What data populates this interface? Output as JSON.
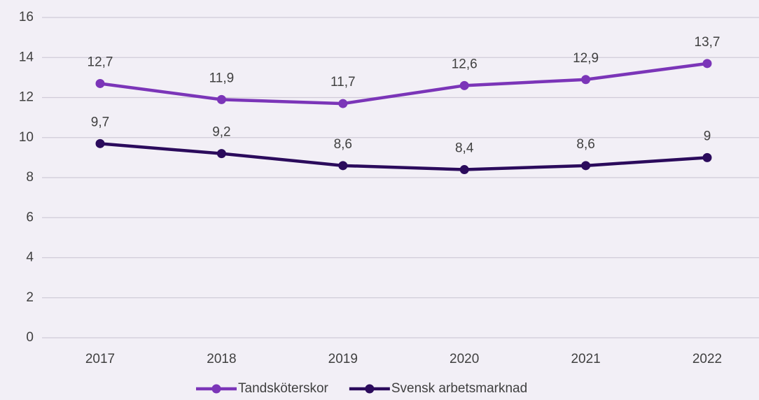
{
  "chart_data": {
    "type": "line",
    "categories": [
      "2017",
      "2018",
      "2019",
      "2020",
      "2021",
      "2022"
    ],
    "series": [
      {
        "name": "Tandsköterskor",
        "color": "#7b35b8",
        "values": [
          12.7,
          11.9,
          11.7,
          12.6,
          12.9,
          13.7
        ],
        "value_labels": [
          "12,7",
          "11,9",
          "11,7",
          "12,6",
          "12,9",
          "13,7"
        ]
      },
      {
        "name": "Svensk arbetsmarknad",
        "color": "#2b0b5c",
        "values": [
          9.7,
          9.2,
          8.6,
          8.4,
          8.6,
          9
        ],
        "value_labels": [
          "9,7",
          "9,2",
          "8,6",
          "8,4",
          "8,6",
          "9"
        ]
      }
    ],
    "ylim": [
      0,
      16
    ],
    "yticks": [
      0,
      2,
      4,
      6,
      8,
      10,
      12,
      14,
      16
    ],
    "grid": true,
    "legend": "bottom"
  }
}
